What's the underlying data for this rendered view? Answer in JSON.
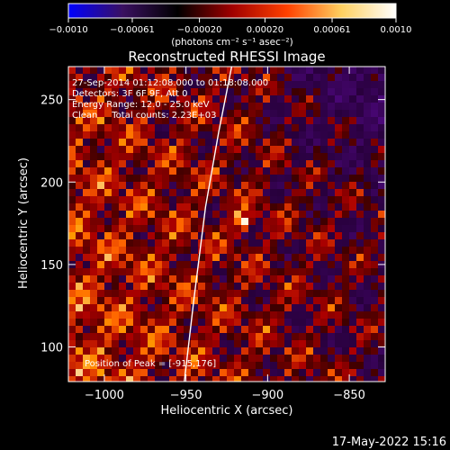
{
  "chart_data": {
    "type": "heatmap",
    "title": "Reconstructed RHESSI Image",
    "xlabel": "Heliocentric X (arcsec)",
    "ylabel": "Heliocentric Y (arcsec)",
    "xlim": [
      -1022,
      -828
    ],
    "ylim": [
      79,
      270
    ],
    "xticks": [
      -1000,
      -950,
      -900,
      -850
    ],
    "yticks": [
      100,
      150,
      200,
      250
    ],
    "xtick_labels": [
      "−1000",
      "−950",
      "−900",
      "−850"
    ],
    "ytick_labels": [
      "100",
      "150",
      "200",
      "250"
    ],
    "colorbar": {
      "range": [
        -0.001,
        0.001
      ],
      "ticks": [
        -0.001,
        -0.00061,
        -0.0002,
        0.0002,
        0.00061,
        0.001
      ],
      "tick_labels": [
        "−0.0010",
        "−0.00061",
        "−0.00020",
        "0.00020",
        "0.00061",
        "0.0010"
      ],
      "units": "(photons cm⁻² s⁻¹ asec⁻²)",
      "stops": [
        "#0000ff",
        "#3a1060",
        "#000000",
        "#a00000",
        "#ff4000",
        "#ffd060",
        "#ffffff"
      ]
    },
    "annotations": [
      "27-Sep-2014 01:12:08.000 to 01:18:08.000",
      "Detectors: 3F 6F 9F, Att 0",
      "Energy Range: 12.0 - 25.0 keV",
      "Clean     Total counts: 2.23E+03"
    ],
    "peak_label": "Position of Peak = [-915,176]",
    "peak": [
      -915,
      176
    ],
    "limb_curve": [
      [
        -951,
        79
      ],
      [
        -945,
        130
      ],
      [
        -938,
        185
      ],
      [
        -930,
        230
      ],
      [
        -922,
        270
      ]
    ]
  },
  "footer_date": "17-May-2022 15:16"
}
